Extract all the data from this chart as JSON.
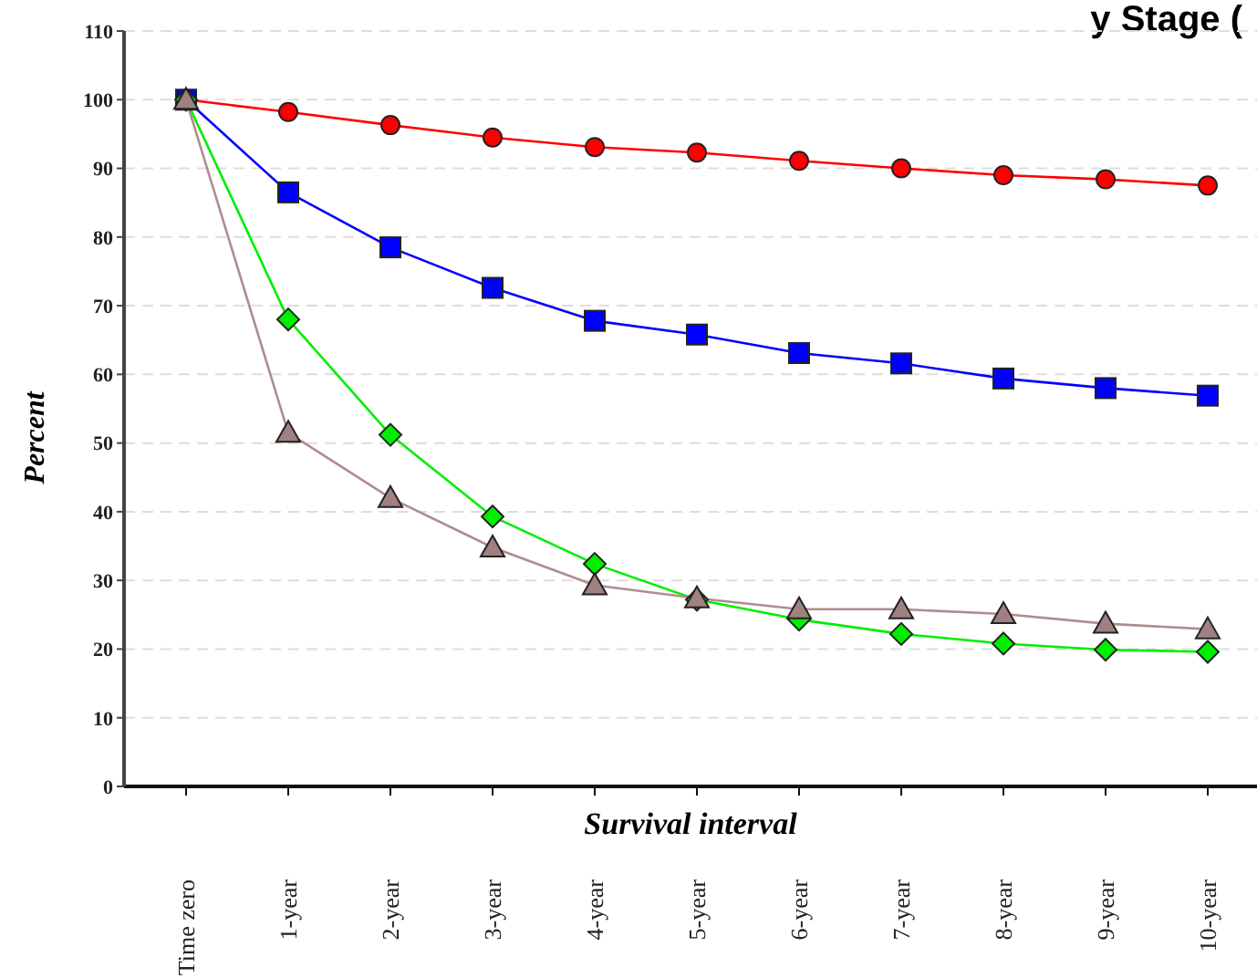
{
  "chart_data": {
    "type": "line",
    "title": "y Stage (",
    "xlabel": "Survival interval",
    "ylabel": "Percent",
    "categories": [
      "Time zero",
      "1-year",
      "2-year",
      "3-year",
      "4-year",
      "5-year",
      "6-year",
      "7-year",
      "8-year",
      "9-year",
      "10-year"
    ],
    "series": [
      {
        "color": "#ff0000",
        "marker": "circle",
        "values": [
          100,
          98.2,
          96.3,
          94.5,
          93.1,
          92.3,
          91.1,
          90.0,
          89.0,
          88.4,
          87.5
        ]
      },
      {
        "color": "#0000ff",
        "marker": "square",
        "values": [
          100,
          86.5,
          78.5,
          72.6,
          67.8,
          65.8,
          63.1,
          61.6,
          59.4,
          58.0,
          56.9
        ]
      },
      {
        "color": "#00ee00",
        "marker": "diamond",
        "values": [
          100,
          68.0,
          51.2,
          39.3,
          32.4,
          27.2,
          24.3,
          22.2,
          20.8,
          19.9,
          19.6
        ]
      },
      {
        "color": "#b08c8c",
        "marker": "triangle",
        "values": [
          100,
          51.5,
          42.0,
          34.8,
          29.3,
          27.4,
          25.8,
          25.8,
          25.1,
          23.7,
          22.9
        ]
      }
    ],
    "ylim": [
      0,
      110
    ],
    "yticks": [
      0,
      10,
      20,
      30,
      40,
      50,
      60,
      70,
      80,
      90,
      100,
      110
    ],
    "grid": "y",
    "legend": false
  }
}
